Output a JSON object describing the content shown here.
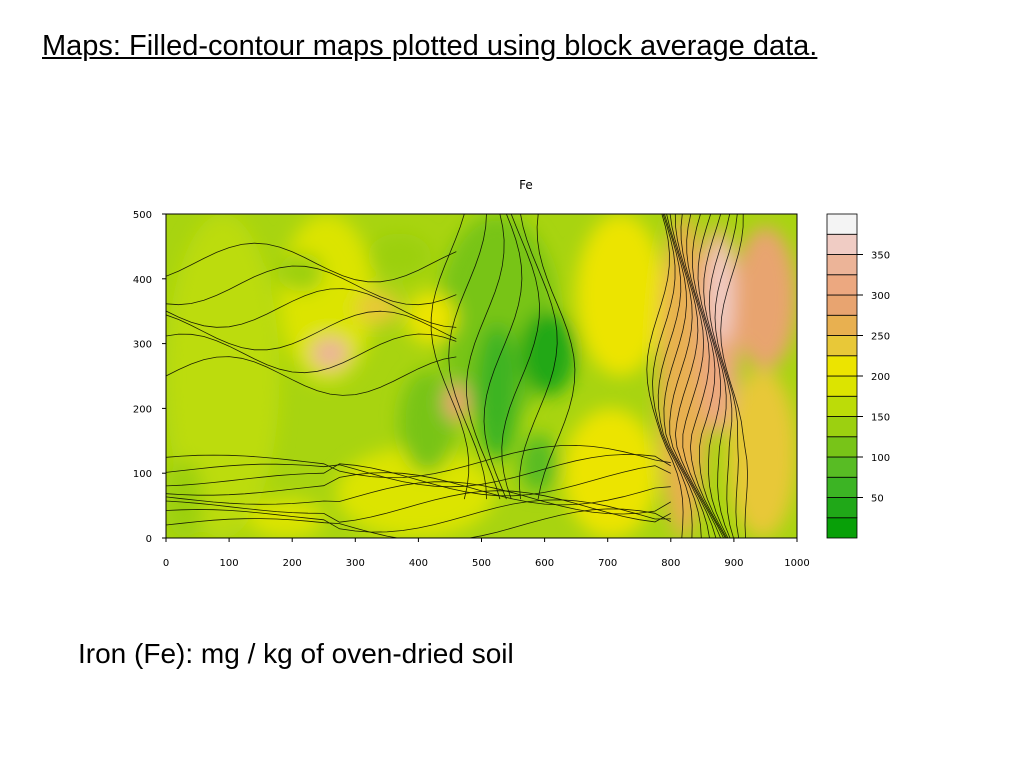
{
  "slide": {
    "title": "Maps: Filled-contour maps plotted using block average data.",
    "caption": "Iron (Fe): mg / kg of oven-dried soil"
  },
  "chart_data": {
    "type": "heatmap",
    "subtype": "filled-contour",
    "title": "Fe",
    "xlabel": "",
    "ylabel": "",
    "xlim": [
      0,
      1000
    ],
    "ylim": [
      0,
      500
    ],
    "x_ticks": [
      0,
      100,
      200,
      300,
      400,
      500,
      600,
      700,
      800,
      900,
      1000
    ],
    "y_ticks": [
      0,
      100,
      200,
      300,
      400,
      500
    ],
    "colorbar": {
      "tick_labels": [
        50,
        100,
        150,
        200,
        250,
        300,
        350
      ],
      "levels": [
        25,
        50,
        75,
        100,
        125,
        150,
        175,
        200,
        225,
        250,
        275,
        300,
        325,
        350,
        375,
        400
      ],
      "colors": [
        "#08a008",
        "#20a818",
        "#3cb424",
        "#58bc24",
        "#78c418",
        "#9cd010",
        "#bcdc08",
        "#dce400",
        "#ece400",
        "#e8c838",
        "#e8b050",
        "#e8a470",
        "#eca880",
        "#ecb498",
        "#f0ccc4",
        "#f4f4f4"
      ]
    },
    "grid": false,
    "z_description": "Iron concentration (mg/kg); low (green) in central band near x 500-650, high (orange/pink, ~300-370) along ridge near x 820-900"
  }
}
